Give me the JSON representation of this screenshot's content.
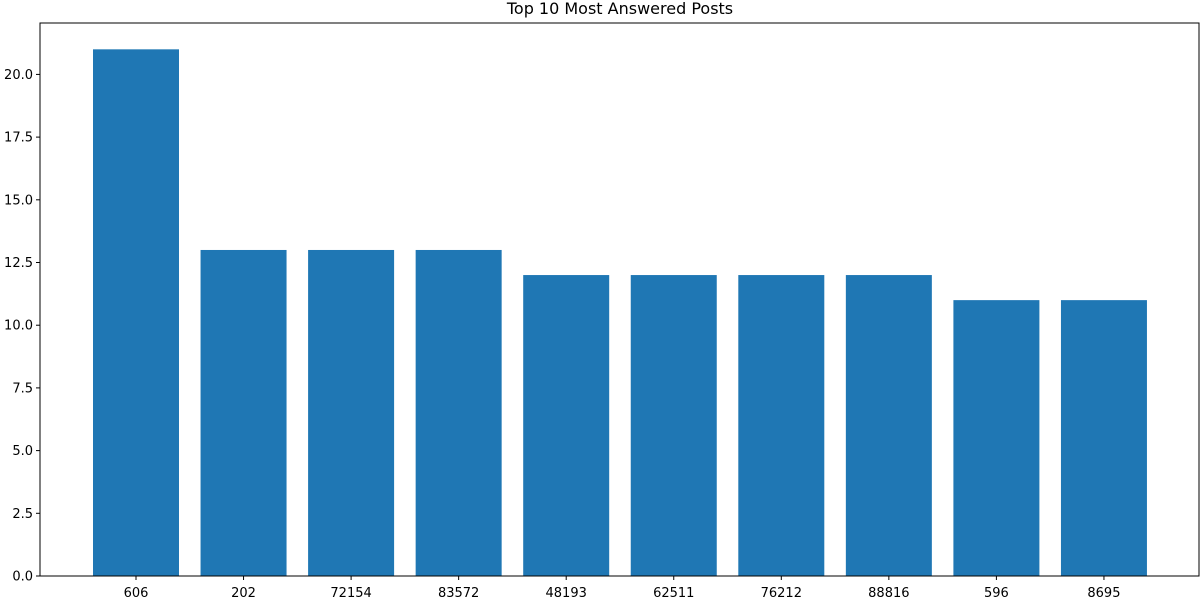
{
  "chart_data": {
    "type": "bar",
    "title": "Top 10 Most Answered Posts",
    "xlabel": "",
    "ylabel": "",
    "categories": [
      "606",
      "202",
      "72154",
      "83572",
      "48193",
      "62511",
      "76212",
      "88816",
      "596",
      "8695"
    ],
    "values": [
      21,
      13,
      13,
      13,
      12,
      12,
      12,
      12,
      11,
      11
    ],
    "ylim": [
      0,
      22.05
    ],
    "yticks": [
      0,
      2.5,
      5,
      7.5,
      10,
      12.5,
      15,
      17.5,
      20
    ],
    "ytick_labels": [
      "0.0",
      "2.5",
      "5.0",
      "7.5",
      "10.0",
      "12.5",
      "15.0",
      "17.5",
      "20.0"
    ],
    "bar_color": "#1f77b4",
    "grid": false,
    "legend": "none"
  }
}
